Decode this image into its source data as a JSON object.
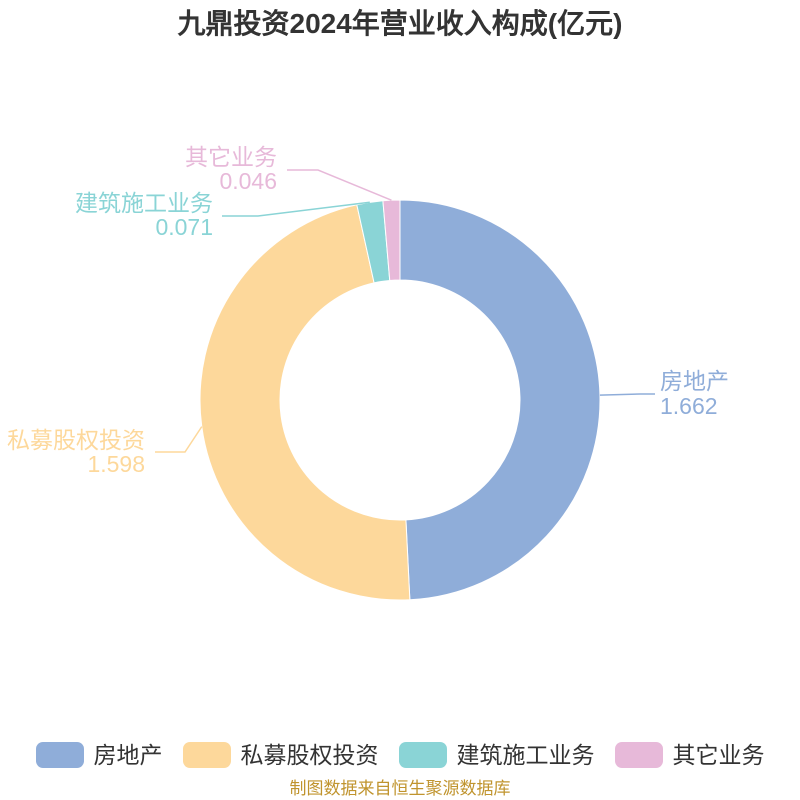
{
  "chart_data": {
    "type": "pie",
    "donut": true,
    "title": "九鼎投资2024年营业收入构成(亿元)",
    "categories": [
      "房地产",
      "私募股权投资",
      "建筑施工业务",
      "其它业务"
    ],
    "values": [
      1.662,
      1.598,
      0.071,
      0.046
    ],
    "colors": [
      "#8fadd9",
      "#fdd89b",
      "#8ad4d6",
      "#e7b9d9"
    ],
    "legend_position": "bottom"
  },
  "footer": {
    "source_note": "制图数据来自恒生聚源数据库"
  },
  "colors": {
    "title": "#333333",
    "legend_text": "#333333",
    "footer": "#c0942e",
    "slice_border": "#ffffff"
  }
}
